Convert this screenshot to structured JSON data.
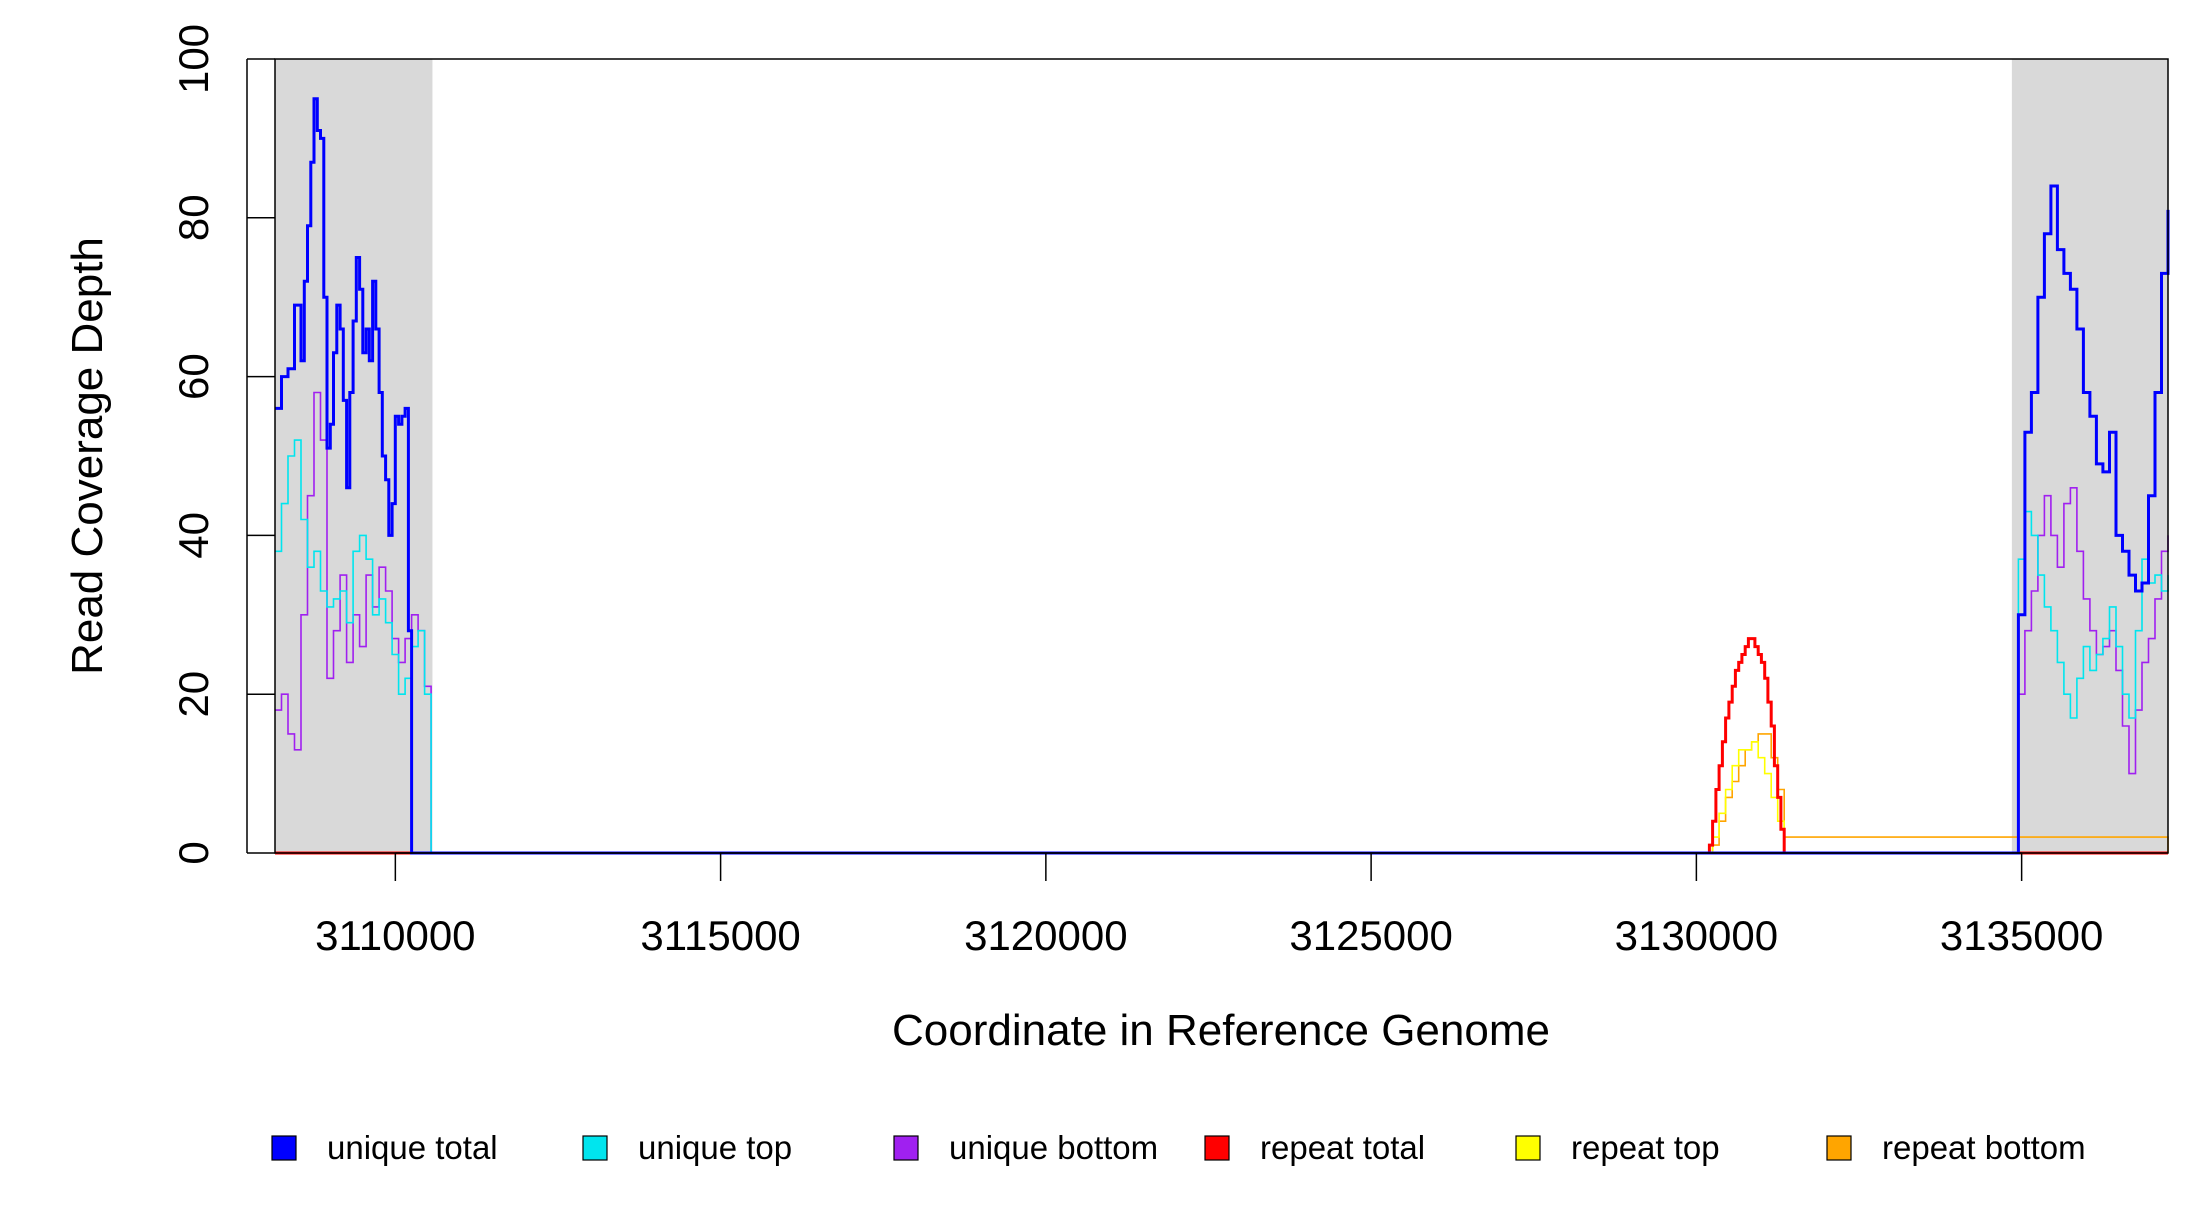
{
  "chart_data": {
    "type": "line",
    "title": "",
    "xlabel": "Coordinate in Reference Genome",
    "ylabel": "Read Coverage Depth",
    "xlim": [
      3108150,
      3137250
    ],
    "ylim": [
      0,
      100
    ],
    "x_ticks": [
      3110000,
      3115000,
      3120000,
      3125000,
      3130000,
      3135000
    ],
    "x_tick_labels": [
      "3110000",
      "3115000",
      "3120000",
      "3125000",
      "3130000",
      "3135000"
    ],
    "y_ticks": [
      0,
      20,
      40,
      60,
      80,
      100
    ],
    "y_tick_labels": [
      "0",
      "20",
      "40",
      "60",
      "80",
      "100"
    ],
    "shaded_regions": [
      {
        "x0": 3108150,
        "x1": 3110570,
        "color": "#d9d9d9"
      },
      {
        "x0": 3134850,
        "x1": 3137250,
        "color": "#d9d9d9"
      }
    ],
    "grid": false,
    "legend_position": "bottom",
    "legend": [
      {
        "label": "unique total",
        "color": "#0000ff"
      },
      {
        "label": "unique top",
        "color": "#00e5ee"
      },
      {
        "label": "unique bottom",
        "color": "#a020f0"
      },
      {
        "label": "repeat total",
        "color": "#ff0000"
      },
      {
        "label": "repeat top",
        "color": "#ffff00"
      },
      {
        "label": "repeat bottom",
        "color": "#ffa500"
      }
    ],
    "series": [
      {
        "name": "unique total",
        "color": "#0000ff",
        "style": "step",
        "x": [
          3108150,
          3108250,
          3108350,
          3108450,
          3108550,
          3108600,
          3108650,
          3108700,
          3108750,
          3108800,
          3108850,
          3108900,
          3108950,
          3109000,
          3109050,
          3109100,
          3109150,
          3109200,
          3109250,
          3109300,
          3109350,
          3109400,
          3109450,
          3109500,
          3109550,
          3109600,
          3109650,
          3109700,
          3109750,
          3109800,
          3109850,
          3109900,
          3109950,
          3110000,
          3110050,
          3110100,
          3110150,
          3110200,
          3110250,
          3110300,
          3110350,
          3110400,
          3110450,
          3110500,
          3110550,
          3110600,
          3134850,
          3134950,
          3135050,
          3135150,
          3135250,
          3135350,
          3135450,
          3135550,
          3135650,
          3135750,
          3135850,
          3135950,
          3136050,
          3136150,
          3136250,
          3136350,
          3136450,
          3136550,
          3136650,
          3136750,
          3136850,
          3136950,
          3137050,
          3137150,
          3137250
        ],
        "y": [
          56,
          60,
          61,
          69,
          62,
          72,
          79,
          87,
          95,
          91,
          90,
          70,
          51,
          54,
          63,
          69,
          66,
          57,
          46,
          58,
          67,
          75,
          71,
          63,
          66,
          62,
          72,
          66,
          58,
          50,
          47,
          40,
          44,
          55,
          54,
          55,
          56,
          28,
          0,
          0,
          0,
          0,
          0,
          0,
          0,
          0,
          0,
          30,
          53,
          58,
          70,
          78,
          84,
          76,
          73,
          71,
          66,
          58,
          55,
          49,
          48,
          53,
          40,
          38,
          35,
          33,
          34,
          45,
          58,
          73,
          81
        ]
      },
      {
        "name": "unique top",
        "color": "#00e5ee",
        "style": "step",
        "x": [
          3108150,
          3108250,
          3108350,
          3108450,
          3108550,
          3108650,
          3108750,
          3108850,
          3108950,
          3109050,
          3109150,
          3109250,
          3109350,
          3109450,
          3109550,
          3109650,
          3109750,
          3109850,
          3109950,
          3110050,
          3110150,
          3110250,
          3110350,
          3110450,
          3110550,
          3110600,
          3134850,
          3134950,
          3135050,
          3135150,
          3135250,
          3135350,
          3135450,
          3135550,
          3135650,
          3135750,
          3135850,
          3135950,
          3136050,
          3136150,
          3136250,
          3136350,
          3136450,
          3136550,
          3136650,
          3136750,
          3136850,
          3136950,
          3137050,
          3137150,
          3137250
        ],
        "y": [
          38,
          44,
          50,
          52,
          42,
          36,
          38,
          33,
          31,
          32,
          33,
          29,
          38,
          40,
          37,
          30,
          32,
          29,
          25,
          20,
          22,
          26,
          28,
          20,
          0,
          0,
          0,
          37,
          43,
          40,
          35,
          31,
          28,
          24,
          20,
          17,
          22,
          26,
          23,
          25,
          27,
          31,
          26,
          20,
          17,
          28,
          37,
          34,
          35,
          33,
          35
        ]
      },
      {
        "name": "unique bottom",
        "color": "#a020f0",
        "style": "step",
        "x": [
          3108150,
          3108250,
          3108350,
          3108450,
          3108550,
          3108650,
          3108750,
          3108850,
          3108950,
          3109050,
          3109150,
          3109250,
          3109350,
          3109450,
          3109550,
          3109650,
          3109750,
          3109850,
          3109950,
          3110050,
          3110150,
          3110250,
          3110350,
          3110450,
          3110550,
          3110600,
          3134850,
          3134950,
          3135050,
          3135150,
          3135250,
          3135350,
          3135450,
          3135550,
          3135650,
          3135750,
          3135850,
          3135950,
          3136050,
          3136150,
          3136250,
          3136350,
          3136450,
          3136550,
          3136650,
          3136750,
          3136850,
          3136950,
          3137050,
          3137150,
          3137250
        ],
        "y": [
          18,
          20,
          15,
          13,
          30,
          45,
          58,
          52,
          22,
          28,
          35,
          24,
          30,
          26,
          35,
          31,
          36,
          33,
          27,
          24,
          27,
          30,
          28,
          21,
          0,
          0,
          0,
          20,
          28,
          33,
          40,
          45,
          40,
          36,
          44,
          46,
          38,
          32,
          28,
          25,
          26,
          28,
          23,
          16,
          10,
          18,
          24,
          27,
          32,
          38,
          40
        ]
      },
      {
        "name": "repeat total",
        "color": "#ff0000",
        "style": "step",
        "x": [
          3108150,
          3130150,
          3130200,
          3130250,
          3130300,
          3130350,
          3130400,
          3130450,
          3130500,
          3130550,
          3130600,
          3130650,
          3130700,
          3130750,
          3130800,
          3130850,
          3130900,
          3130950,
          3131000,
          3131050,
          3131100,
          3131150,
          3131200,
          3131250,
          3131300,
          3131350,
          3137250
        ],
        "y": [
          0,
          0,
          1,
          4,
          8,
          11,
          14,
          17,
          19,
          21,
          23,
          24,
          25,
          26,
          27,
          27,
          26,
          25,
          24,
          22,
          19,
          16,
          11,
          7,
          3,
          0,
          0
        ]
      },
      {
        "name": "repeat top",
        "color": "#ffff00",
        "style": "step",
        "x": [
          3108150,
          3130150,
          3130250,
          3130350,
          3130450,
          3130550,
          3130650,
          3130750,
          3130850,
          3130950,
          3131050,
          3131150,
          3131250,
          3131350,
          3137250
        ],
        "y": [
          0,
          0,
          2,
          5,
          8,
          11,
          13,
          13,
          14,
          12,
          10,
          7,
          4,
          0,
          0
        ]
      },
      {
        "name": "repeat bottom",
        "color": "#ffa500",
        "style": "step",
        "x": [
          3108150,
          3130150,
          3130250,
          3130350,
          3130450,
          3130550,
          3130650,
          3130750,
          3130850,
          3130950,
          3131050,
          3131150,
          3131250,
          3131350,
          3137250
        ],
        "y": [
          0,
          0,
          1,
          4,
          7,
          9,
          11,
          13,
          14,
          15,
          15,
          12,
          8,
          2,
          0
        ]
      }
    ]
  }
}
